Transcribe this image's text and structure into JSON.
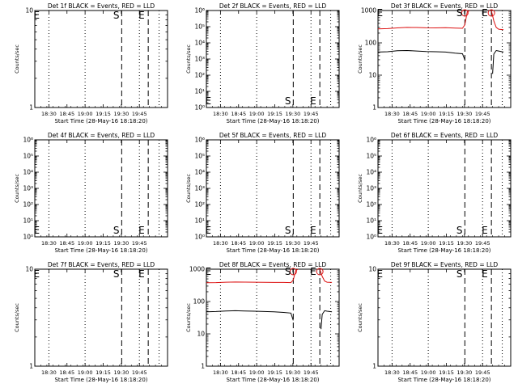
{
  "colors": {
    "events": "#000000",
    "lld": "#dd1111",
    "background": "#ffffff",
    "axes": "#000000"
  },
  "chart_data": [
    {
      "type": "line",
      "title": "Det 1f BLACK = Events, RED = LLD",
      "xlabel": "Start Time (28-May-16 18:18:20)",
      "ylabel": "Counts/sec",
      "scale": "log",
      "ylim": [
        1,
        10
      ],
      "yticks": [
        {
          "v": 1,
          "label": "1"
        },
        {
          "v": 10,
          "label": "10"
        }
      ],
      "xticks": [
        "18:30",
        "18:45",
        "19:00",
        "19:15",
        "19:30",
        "19:45"
      ],
      "letters": [
        "E",
        "S",
        "E"
      ],
      "series": []
    },
    {
      "type": "line",
      "title": "Det 2f BLACK = Events, RED = LLD",
      "xlabel": "Start Time (28-May-16 18:18:20)",
      "ylabel": "Counts/sec",
      "scale": "log",
      "ylim": [
        1,
        1000000
      ],
      "yticks": [
        {
          "v": 1,
          "label": "10⁰"
        },
        {
          "v": 10,
          "label": "10¹"
        },
        {
          "v": 100,
          "label": "10²"
        },
        {
          "v": 1000,
          "label": "10³"
        },
        {
          "v": 10000,
          "label": "10⁴"
        },
        {
          "v": 100000,
          "label": "10⁵"
        },
        {
          "v": 1000000,
          "label": "10⁶"
        }
      ],
      "xticks": [
        "18:30",
        "18:45",
        "19:00",
        "19:15",
        "19:30",
        "19:45"
      ],
      "letters": [
        "E",
        "S",
        "E"
      ],
      "series": []
    },
    {
      "type": "line",
      "title": "Det 3f BLACK = Events, RED = LLD",
      "xlabel": "Start Time (28-May-16 18:18:20)",
      "ylabel": "Counts/sec",
      "scale": "log",
      "ylim": [
        1,
        1000
      ],
      "yticks": [
        {
          "v": 1,
          "label": "1"
        },
        {
          "v": 10,
          "label": "10"
        },
        {
          "v": 100,
          "label": "100"
        },
        {
          "v": 1000,
          "label": "1000"
        }
      ],
      "xticks": [
        "18:30",
        "18:45",
        "19:00",
        "19:15",
        "19:30",
        "19:45"
      ],
      "letters": [
        "E",
        "S",
        "E"
      ],
      "series": [
        {
          "color": "#dd1111",
          "segments": [
            [
              [
                0,
                270
              ],
              [
                8,
                275
              ],
              [
                16,
                290
              ],
              [
                24,
                300
              ],
              [
                32,
                298
              ],
              [
                40,
                292
              ],
              [
                48,
                290
              ],
              [
                56,
                295
              ],
              [
                64,
                286
              ],
              [
                70,
                282
              ],
              [
                72,
                360
              ],
              [
                74,
                900
              ],
              [
                76,
                1000
              ]
            ],
            [
              [
                94,
                1000
              ],
              [
                96,
                480
              ],
              [
                98,
                300
              ],
              [
                100,
                265
              ],
              [
                104,
                255
              ]
            ]
          ]
        },
        {
          "color": "#000000",
          "segments": [
            [
              [
                0,
                52
              ],
              [
                8,
                53
              ],
              [
                16,
                57
              ],
              [
                24,
                58
              ],
              [
                32,
                56
              ],
              [
                40,
                54
              ],
              [
                48,
                53
              ],
              [
                56,
                52
              ],
              [
                64,
                48
              ],
              [
                70,
                46
              ],
              [
                72,
                30
              ]
            ],
            [
              [
                95,
                11
              ],
              [
                96,
                45
              ],
              [
                98,
                58
              ],
              [
                100,
                56
              ],
              [
                104,
                52
              ]
            ]
          ]
        }
      ]
    },
    {
      "type": "line",
      "title": "Det 4f BLACK = Events, RED = LLD",
      "xlabel": "Start Time (28-May-16 18:18:20)",
      "ylabel": "Counts/sec",
      "scale": "log",
      "ylim": [
        1,
        1000000
      ],
      "yticks": [
        {
          "v": 1,
          "label": "10⁰"
        },
        {
          "v": 10,
          "label": "10¹"
        },
        {
          "v": 100,
          "label": "10²"
        },
        {
          "v": 1000,
          "label": "10³"
        },
        {
          "v": 10000,
          "label": "10⁴"
        },
        {
          "v": 100000,
          "label": "10⁵"
        },
        {
          "v": 1000000,
          "label": "10⁶"
        }
      ],
      "xticks": [
        "18:30",
        "18:45",
        "19:00",
        "19:15",
        "19:30",
        "19:45"
      ],
      "letters": [
        "E",
        "S",
        "E"
      ],
      "series": []
    },
    {
      "type": "line",
      "title": "Det 5f BLACK = Events, RED = LLD",
      "xlabel": "Start Time (28-May-16 18:18:20)",
      "ylabel": "Counts/sec",
      "scale": "log",
      "ylim": [
        1,
        1000000
      ],
      "yticks": [
        {
          "v": 1,
          "label": "10⁰"
        },
        {
          "v": 10,
          "label": "10¹"
        },
        {
          "v": 100,
          "label": "10²"
        },
        {
          "v": 1000,
          "label": "10³"
        },
        {
          "v": 10000,
          "label": "10⁴"
        },
        {
          "v": 100000,
          "label": "10⁵"
        },
        {
          "v": 1000000,
          "label": "10⁶"
        }
      ],
      "xticks": [
        "18:30",
        "18:45",
        "19:00",
        "19:15",
        "19:30",
        "19:45"
      ],
      "letters": [
        "E",
        "S",
        "E"
      ],
      "series": []
    },
    {
      "type": "line",
      "title": "Det 6f BLACK = Events, RED = LLD",
      "xlabel": "Start Time (28-May-16 18:18:20)",
      "ylabel": "Counts/sec",
      "scale": "log",
      "ylim": [
        1,
        1000000
      ],
      "yticks": [
        {
          "v": 1,
          "label": "10⁰"
        },
        {
          "v": 10,
          "label": "10¹"
        },
        {
          "v": 100,
          "label": "10²"
        },
        {
          "v": 1000,
          "label": "10³"
        },
        {
          "v": 10000,
          "label": "10⁴"
        },
        {
          "v": 100000,
          "label": "10⁵"
        },
        {
          "v": 1000000,
          "label": "10⁶"
        }
      ],
      "xticks": [
        "18:30",
        "18:45",
        "19:00",
        "19:15",
        "19:30",
        "19:45"
      ],
      "letters": [
        "E",
        "S",
        "E"
      ],
      "series": []
    },
    {
      "type": "line",
      "title": "Det 7f BLACK = Events, RED = LLD",
      "xlabel": "Start Time (28-May-16 18:18:20)",
      "ylabel": "Counts/sec",
      "scale": "log",
      "ylim": [
        1,
        10
      ],
      "yticks": [
        {
          "v": 1,
          "label": "1"
        },
        {
          "v": 10,
          "label": "10"
        }
      ],
      "xticks": [
        "18:30",
        "18:45",
        "19:00",
        "19:15",
        "19:30",
        "19:45"
      ],
      "letters": [
        "E",
        "S",
        "E"
      ],
      "series": []
    },
    {
      "type": "line",
      "title": "Det 8f BLACK = Events, RED = LLD",
      "xlabel": "Start Time (28-May-16 18:18:20)",
      "ylabel": "Counts/sec",
      "scale": "log",
      "ylim": [
        1,
        1000
      ],
      "yticks": [
        {
          "v": 1,
          "label": "1"
        },
        {
          "v": 10,
          "label": "10"
        },
        {
          "v": 100,
          "label": "100"
        },
        {
          "v": 1000,
          "label": "1000"
        }
      ],
      "xticks": [
        "18:30",
        "18:45",
        "19:00",
        "19:15",
        "19:30",
        "19:45"
      ],
      "letters": [
        "E",
        "S",
        "E"
      ],
      "series": [
        {
          "color": "#dd1111",
          "segments": [
            [
              [
                0,
                380
              ],
              [
                8,
                385
              ],
              [
                16,
                395
              ],
              [
                24,
                400
              ],
              [
                32,
                398
              ],
              [
                40,
                395
              ],
              [
                48,
                392
              ],
              [
                56,
                390
              ],
              [
                64,
                388
              ],
              [
                70,
                385
              ],
              [
                72,
                460
              ],
              [
                74,
                900
              ],
              [
                76,
                1000
              ]
            ],
            [
              [
                94,
                1000
              ],
              [
                96,
                600
              ],
              [
                98,
                430
              ],
              [
                100,
                395
              ],
              [
                104,
                390
              ]
            ]
          ]
        },
        {
          "color": "#000000",
          "segments": [
            [
              [
                0,
                48
              ],
              [
                8,
                49
              ],
              [
                16,
                51
              ],
              [
                24,
                52
              ],
              [
                32,
                51
              ],
              [
                40,
                50
              ],
              [
                48,
                49
              ],
              [
                56,
                48
              ],
              [
                64,
                46
              ],
              [
                70,
                44
              ],
              [
                72,
                26
              ]
            ],
            [
              [
                95,
                14
              ],
              [
                96,
                40
              ],
              [
                98,
                52
              ],
              [
                100,
                50
              ],
              [
                104,
                48
              ]
            ]
          ]
        }
      ]
    },
    {
      "type": "line",
      "title": "Det 9f BLACK = Events, RED = LLD",
      "xlabel": "Start Time (28-May-16 18:18:20)",
      "ylabel": "Counts/sec",
      "scale": "log",
      "ylim": [
        1,
        10
      ],
      "yticks": [
        {
          "v": 1,
          "label": "1"
        },
        {
          "v": 10,
          "label": "10"
        }
      ],
      "xticks": [
        "18:30",
        "18:45",
        "19:00",
        "19:15",
        "19:30",
        "19:45"
      ],
      "letters": [
        "E",
        "S",
        "E"
      ],
      "series": []
    }
  ]
}
